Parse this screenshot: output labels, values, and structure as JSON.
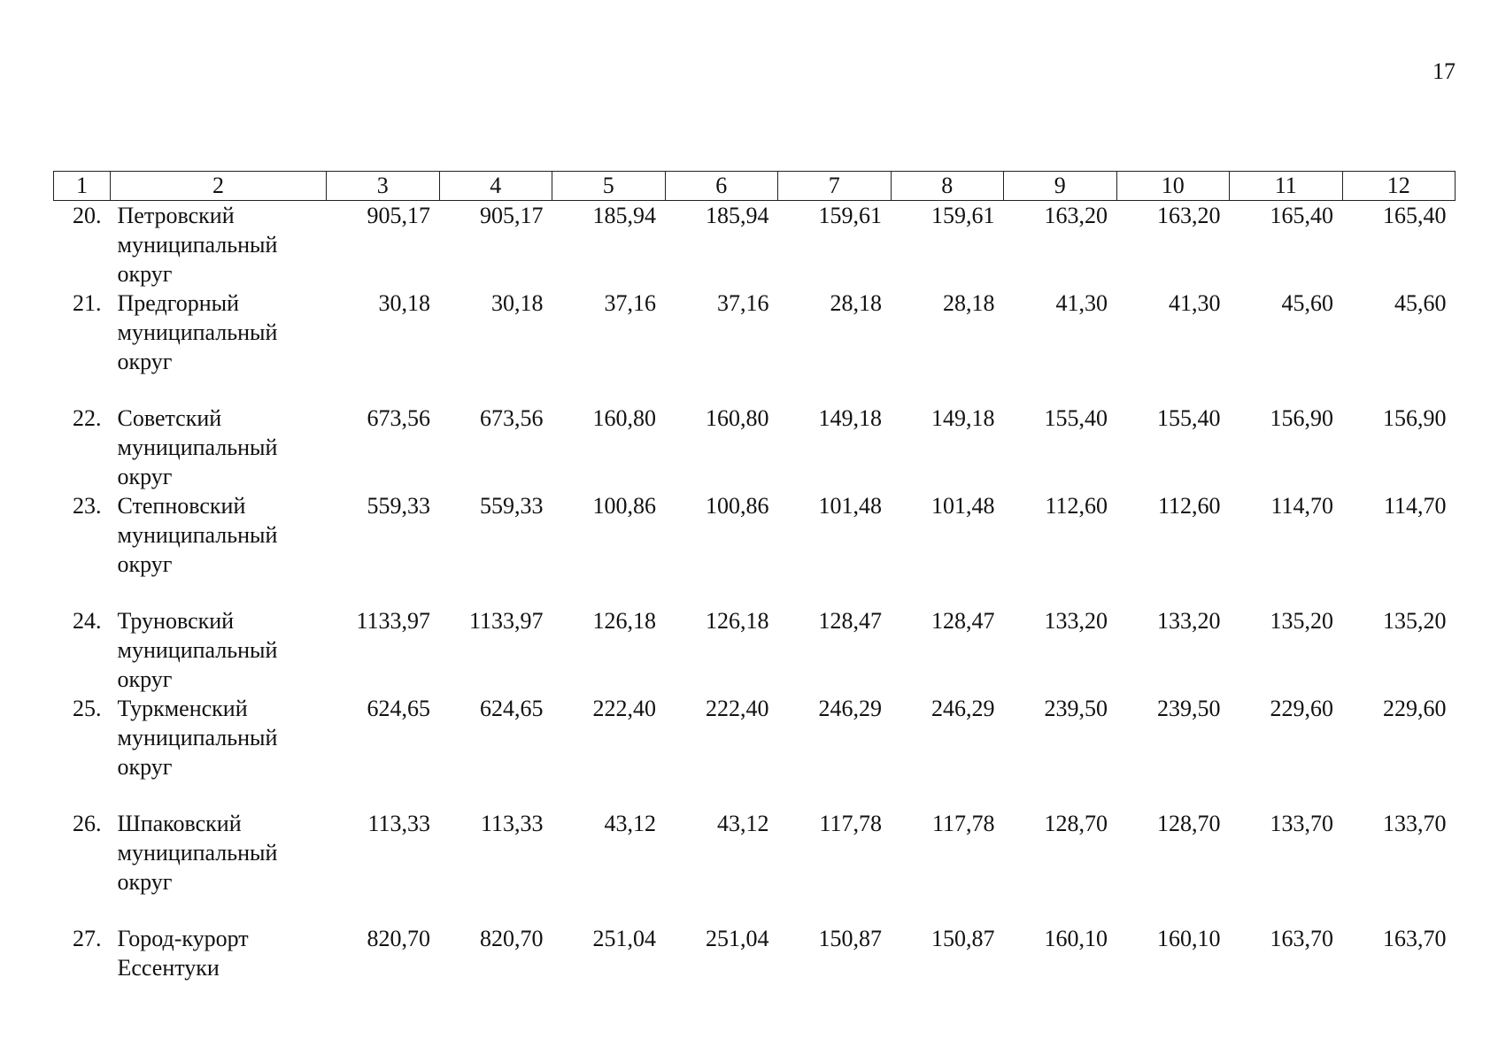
{
  "page_number": "17",
  "table": {
    "header": [
      "1",
      "2",
      "3",
      "4",
      "5",
      "6",
      "7",
      "8",
      "9",
      "10",
      "11",
      "12"
    ],
    "rows": [
      {
        "num": "20.",
        "name": "Петровский муниципальный округ",
        "values": [
          "905,17",
          "905,17",
          "185,94",
          "185,94",
          "159,61",
          "159,61",
          "163,20",
          "163,20",
          "165,40",
          "165,40"
        ]
      },
      {
        "num": "21.",
        "name": "Предгорный муниципальный округ",
        "values": [
          "30,18",
          "30,18",
          "37,16",
          "37,16",
          "28,18",
          "28,18",
          "41,30",
          "41,30",
          "45,60",
          "45,60"
        ]
      },
      {
        "num": "22.",
        "name": "Советский муниципальный округ",
        "values": [
          "673,56",
          "673,56",
          "160,80",
          "160,80",
          "149,18",
          "149,18",
          "155,40",
          "155,40",
          "156,90",
          "156,90"
        ]
      },
      {
        "num": "23.",
        "name": "Степновский муниципальный округ",
        "values": [
          "559,33",
          "559,33",
          "100,86",
          "100,86",
          "101,48",
          "101,48",
          "112,60",
          "112,60",
          "114,70",
          "114,70"
        ]
      },
      {
        "num": "24.",
        "name": "Труновский муниципальный округ",
        "values": [
          "1133,97",
          "1133,97",
          "126,18",
          "126,18",
          "128,47",
          "128,47",
          "133,20",
          "133,20",
          "135,20",
          "135,20"
        ]
      },
      {
        "num": "25.",
        "name": "Туркменский муниципальный округ",
        "values": [
          "624,65",
          "624,65",
          "222,40",
          "222,40",
          "246,29",
          "246,29",
          "239,50",
          "239,50",
          "229,60",
          "229,60"
        ]
      },
      {
        "num": "26.",
        "name": "Шпаковский муниципальный округ",
        "values": [
          "113,33",
          "113,33",
          "43,12",
          "43,12",
          "117,78",
          "117,78",
          "128,70",
          "128,70",
          "133,70",
          "133,70"
        ]
      },
      {
        "num": "27.",
        "name": "Город-курорт Ессентуки",
        "values": [
          "820,70",
          "820,70",
          "251,04",
          "251,04",
          "150,87",
          "150,87",
          "160,10",
          "160,10",
          "163,70",
          "163,70"
        ]
      }
    ]
  }
}
